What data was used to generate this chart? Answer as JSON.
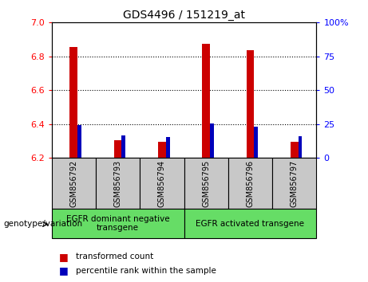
{
  "title": "GDS4496 / 151219_at",
  "samples": [
    "GSM856792",
    "GSM856793",
    "GSM856794",
    "GSM856795",
    "GSM856796",
    "GSM856797"
  ],
  "red_values": [
    6.855,
    6.305,
    6.295,
    6.875,
    6.835,
    6.295
  ],
  "blue_values": [
    6.385,
    6.325,
    6.315,
    6.395,
    6.375,
    6.32
  ],
  "ylim_left": [
    6.2,
    7.0
  ],
  "ylim_right": [
    0,
    100
  ],
  "left_ticks": [
    6.2,
    6.4,
    6.6,
    6.8,
    7.0
  ],
  "right_ticks": [
    0,
    25,
    50,
    75,
    100
  ],
  "right_tick_labels": [
    "0",
    "25",
    "50",
    "75",
    "100%"
  ],
  "group1_label": "EGFR dominant negative\ntransgene",
  "group2_label": "EGFR activated transgene",
  "group1_indices": [
    0,
    1,
    2
  ],
  "group2_indices": [
    3,
    4,
    5
  ],
  "xlabel_left": "genotype/variation",
  "legend_red": "transformed count",
  "legend_blue": "percentile rank within the sample",
  "red_color": "#CC0000",
  "blue_color": "#0000BB",
  "group_bg_color": "#66DD66",
  "sample_bg_color": "#C8C8C8"
}
